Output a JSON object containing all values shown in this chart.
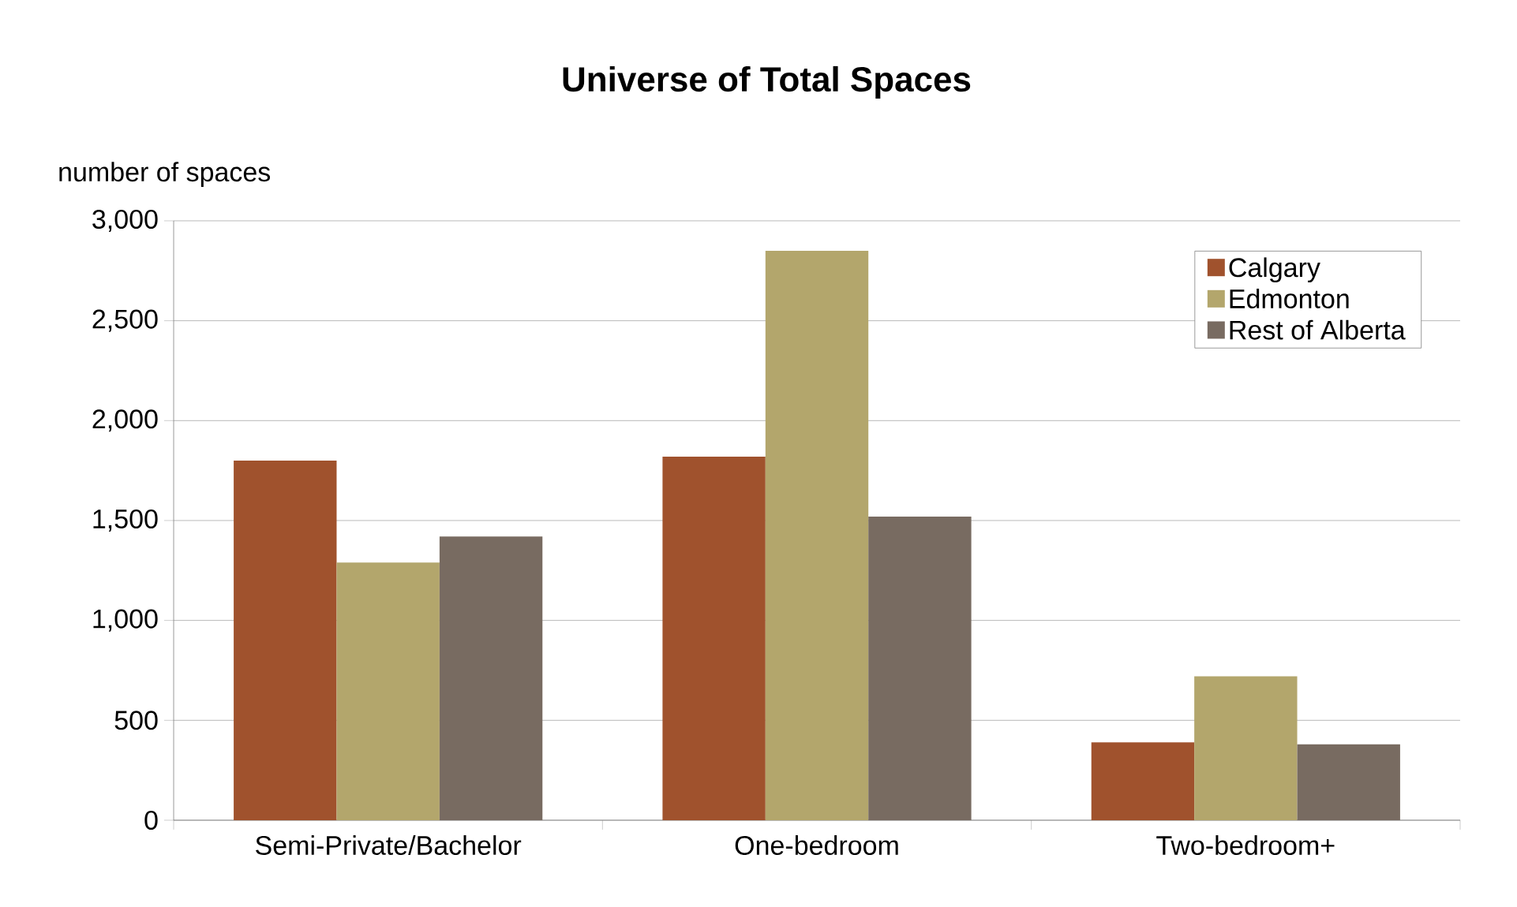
{
  "chart_data": {
    "type": "bar",
    "title": "Universe of  Total Spaces",
    "ylabel": "number of spaces",
    "categories": [
      "Semi-Private/Bachelor",
      "One-bedroom",
      "Two-bedroom+"
    ],
    "series": [
      {
        "name": "Calgary",
        "color": "#a0522d",
        "values": [
          1800,
          1820,
          390
        ]
      },
      {
        "name": "Edmonton",
        "color": "#b3a66c",
        "values": [
          1290,
          2850,
          720
        ]
      },
      {
        "name": "Rest of Alberta",
        "color": "#786b61",
        "values": [
          1420,
          1520,
          380
        ]
      }
    ],
    "ylim": [
      0,
      3000
    ],
    "yticks": [
      0,
      500,
      {
        "value": 1000,
        "label": "1,000"
      },
      {
        "value": 1500,
        "label": "1,500"
      },
      {
        "value": 2000,
        "label": "2,000"
      },
      {
        "value": 2500,
        "label": "2,500"
      },
      {
        "value": 3000,
        "label": "3,000"
      }
    ],
    "grid": "y",
    "legend": "top right"
  }
}
